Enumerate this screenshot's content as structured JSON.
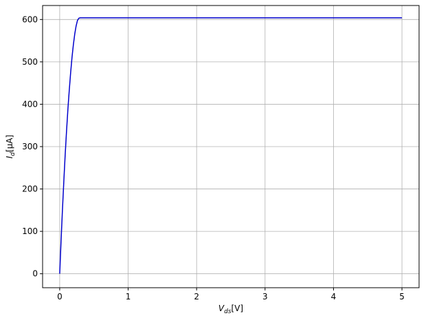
{
  "chart_data": {
    "type": "line",
    "title": "",
    "xlabel": {
      "main": "V",
      "sub": "ds",
      "unit": "[V]"
    },
    "ylabel": {
      "main": "I",
      "sub": "d",
      "unit": "[μA]"
    },
    "xlim": [
      -0.25,
      5.25
    ],
    "ylim": [
      -33,
      633
    ],
    "xticks": [
      0,
      1,
      2,
      3,
      4,
      5
    ],
    "yticks": [
      0,
      100,
      200,
      300,
      400,
      500,
      600
    ],
    "xtick_labels": [
      "0",
      "1",
      "2",
      "3",
      "4",
      "5"
    ],
    "ytick_labels": [
      "0",
      "100",
      "200",
      "300",
      "400",
      "500",
      "600"
    ],
    "grid": true,
    "legend": "none",
    "series": [
      {
        "color": "#0000cc",
        "x": [
          0,
          0.02,
          0.04,
          0.06,
          0.08,
          0.1,
          0.12,
          0.14,
          0.16,
          0.18,
          0.2,
          0.22,
          0.24,
          0.26,
          0.28,
          0.3,
          0.32,
          0.5,
          1,
          2,
          3,
          4,
          5
        ],
        "y": [
          0,
          78,
          151,
          218,
          281,
          337,
          389,
          434,
          475,
          511,
          541,
          566,
          585,
          598,
          603,
          604,
          604,
          604,
          604,
          604,
          604,
          604,
          604
        ]
      }
    ]
  }
}
